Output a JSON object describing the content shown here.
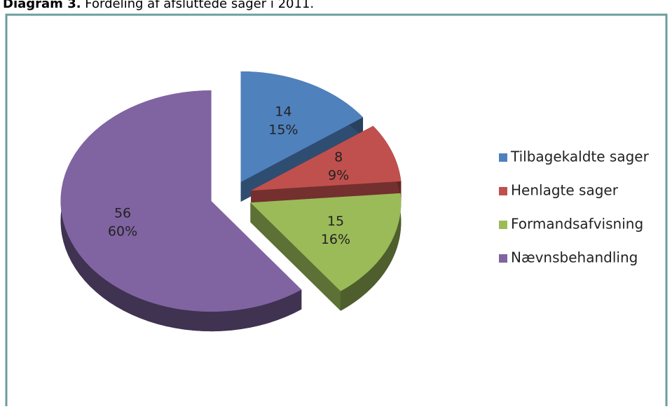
{
  "chart_data": {
    "type": "pie",
    "title_bold": "Diagram 3.",
    "title": "Fordeling af afsluttede sager i 2011.",
    "categories": [
      "Tilbagekaldte sager",
      "Henlagte sager",
      "Formandsafvisning",
      "Nævnsbehandling"
    ],
    "values": [
      14,
      8,
      15,
      56
    ],
    "percent_labels": [
      "15%",
      "9%",
      "16%",
      "60%"
    ],
    "colors": [
      "#4f81bd",
      "#c0504d",
      "#9bbb59",
      "#8064a2"
    ],
    "legend": "right"
  }
}
